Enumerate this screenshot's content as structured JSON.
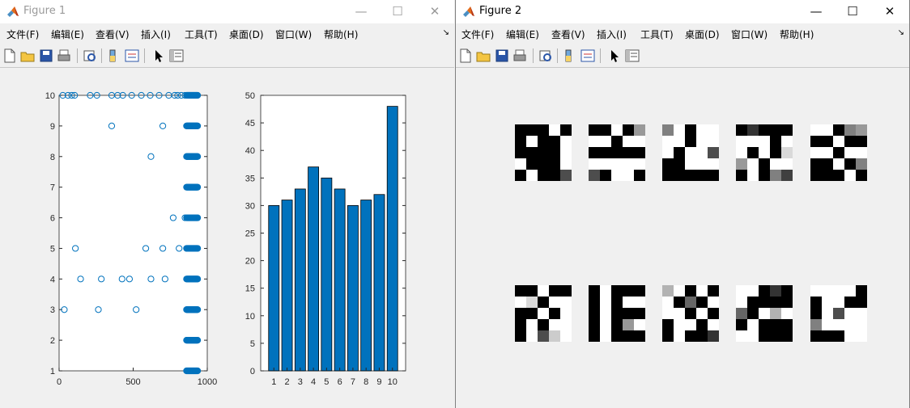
{
  "windows": [
    {
      "title": "Figure 1",
      "controls": {
        "minimize": "—",
        "maximize": "☐",
        "close": "✕"
      },
      "menu": [
        "文件(F)",
        "编辑(E)",
        "查看(V)",
        "插入(I)",
        "工具(T)",
        "桌面(D)",
        "窗口(W)",
        "帮助(H)"
      ],
      "menu_arrow": "↘"
    },
    {
      "title": "Figure 2",
      "controls": {
        "minimize": "—",
        "maximize": "☐",
        "close": "✕"
      },
      "menu": [
        "文件(F)",
        "编辑(E)",
        "查看(V)",
        "插入(I)",
        "工具(T)",
        "桌面(D)",
        "窗口(W)",
        "帮助(H)"
      ],
      "menu_arrow": "↘"
    }
  ],
  "toolbar_icons": [
    "new-file-icon",
    "open-folder-icon",
    "save-icon",
    "print-icon",
    "print-preview-icon",
    "colorbar-icon",
    "legend-icon",
    "pointer-icon",
    "property-inspector-icon"
  ],
  "colors": {
    "marker": "#0072bd",
    "bar_fill": "#0072bd",
    "axes_bg": "#ffffff",
    "figure_bg": "#f0f0f0"
  },
  "chart_data": [
    {
      "type": "scatter",
      "marker": "open-circle",
      "xlim": [
        0,
        1000
      ],
      "ylim": [
        1,
        10
      ],
      "xticks": [
        "0",
        "500",
        "1000"
      ],
      "yticks": [
        "1",
        "2",
        "3",
        "4",
        "5",
        "6",
        "7",
        "8",
        "9",
        "10"
      ],
      "points": [
        {
          "x": 25,
          "y": 10
        },
        {
          "x": 60,
          "y": 10
        },
        {
          "x": 85,
          "y": 10
        },
        {
          "x": 105,
          "y": 10
        },
        {
          "x": 210,
          "y": 10
        },
        {
          "x": 255,
          "y": 10
        },
        {
          "x": 355,
          "y": 10
        },
        {
          "x": 395,
          "y": 10
        },
        {
          "x": 430,
          "y": 10
        },
        {
          "x": 490,
          "y": 10
        },
        {
          "x": 555,
          "y": 10
        },
        {
          "x": 615,
          "y": 10
        },
        {
          "x": 675,
          "y": 10
        },
        {
          "x": 740,
          "y": 10
        },
        {
          "x": 780,
          "y": 10
        },
        {
          "x": 800,
          "y": 10
        },
        {
          "x": 825,
          "y": 10
        },
        {
          "x": 850,
          "y": 10
        },
        {
          "x": 355,
          "y": 9
        },
        {
          "x": 700,
          "y": 9
        },
        {
          "x": 620,
          "y": 8
        },
        {
          "x": 770,
          "y": 6
        },
        {
          "x": 850,
          "y": 6
        },
        {
          "x": 110,
          "y": 5
        },
        {
          "x": 585,
          "y": 5
        },
        {
          "x": 700,
          "y": 5
        },
        {
          "x": 810,
          "y": 5
        },
        {
          "x": 145,
          "y": 4
        },
        {
          "x": 285,
          "y": 4
        },
        {
          "x": 425,
          "y": 4
        },
        {
          "x": 475,
          "y": 4
        },
        {
          "x": 620,
          "y": 4
        },
        {
          "x": 715,
          "y": 4
        },
        {
          "x": 35,
          "y": 3
        },
        {
          "x": 265,
          "y": 3
        },
        {
          "x": 520,
          "y": 3
        }
      ],
      "dense_columns": [
        {
          "y": 10,
          "x_from": 860,
          "x_to": 935
        },
        {
          "y": 9,
          "x_from": 860,
          "x_to": 935
        },
        {
          "y": 8,
          "x_from": 860,
          "x_to": 935
        },
        {
          "y": 7,
          "x_from": 860,
          "x_to": 935
        },
        {
          "y": 6,
          "x_from": 860,
          "x_to": 935
        },
        {
          "y": 5,
          "x_from": 860,
          "x_to": 935
        },
        {
          "y": 4,
          "x_from": 860,
          "x_to": 935
        },
        {
          "y": 3,
          "x_from": 860,
          "x_to": 935
        },
        {
          "y": 2,
          "x_from": 860,
          "x_to": 935
        },
        {
          "y": 1,
          "x_from": 860,
          "x_to": 935
        }
      ]
    },
    {
      "type": "bar",
      "categories": [
        "1",
        "2",
        "3",
        "4",
        "5",
        "6",
        "7",
        "8",
        "9",
        "10"
      ],
      "values": [
        30,
        31,
        33,
        37,
        35,
        33,
        30,
        31,
        32,
        48
      ],
      "ylim": [
        0,
        50
      ],
      "yticks": [
        "0",
        "5",
        "10",
        "15",
        "20",
        "25",
        "30",
        "35",
        "40",
        "45",
        "50"
      ]
    }
  ],
  "figure2": {
    "type": "image-grid",
    "rows": 2,
    "cols": 5,
    "tiles": [
      [
        [
          0,
          0,
          0,
          1,
          0
        ],
        [
          0,
          1,
          0,
          0,
          1
        ],
        [
          0,
          0,
          0,
          0,
          1
        ],
        [
          1,
          0,
          0,
          0,
          1
        ],
        [
          0,
          1,
          0,
          0,
          0.3
        ]
      ],
      [
        [
          0,
          0,
          1,
          0,
          0.6
        ],
        [
          1,
          1,
          0,
          1,
          1
        ],
        [
          0,
          0,
          0,
          0,
          0
        ],
        [
          1,
          1,
          1,
          1,
          1
        ],
        [
          0.3,
          0,
          1,
          1,
          0
        ]
      ],
      [
        [
          0.5,
          1,
          0,
          1,
          1
        ],
        [
          1,
          1,
          0,
          1,
          1
        ],
        [
          1,
          0,
          1,
          1,
          0.3
        ],
        [
          0,
          0,
          1,
          1,
          1
        ],
        [
          0,
          0,
          0,
          0,
          0
        ]
      ],
      [
        [
          0,
          0.2,
          0,
          0,
          0
        ],
        [
          1,
          1,
          1,
          0,
          1
        ],
        [
          1,
          0,
          1,
          0,
          0.85
        ],
        [
          0.6,
          1,
          0,
          1,
          1
        ],
        [
          0,
          1,
          0,
          0.5,
          0.25
        ]
      ],
      [
        [
          1,
          1,
          0,
          0.5,
          0.6
        ],
        [
          0,
          0,
          1,
          0,
          0
        ],
        [
          1,
          1,
          0,
          1,
          1
        ],
        [
          0,
          0,
          1,
          0,
          0.5
        ],
        [
          0,
          0,
          0,
          1,
          0
        ]
      ],
      [
        [
          0,
          0,
          1,
          0,
          0
        ],
        [
          1,
          0.85,
          0,
          1,
          1
        ],
        [
          0,
          0,
          1,
          0,
          1
        ],
        [
          0,
          1,
          0,
          1,
          1
        ],
        [
          0,
          1,
          0.3,
          0.8,
          1
        ]
      ],
      [
        [
          0,
          1,
          0,
          0,
          0
        ],
        [
          0,
          1,
          0,
          1,
          1
        ],
        [
          0,
          1,
          0,
          0,
          0
        ],
        [
          0,
          1,
          0,
          0.6,
          1
        ],
        [
          0,
          1,
          0,
          0,
          0
        ]
      ],
      [
        [
          0.7,
          1,
          0,
          1,
          0
        ],
        [
          1,
          0,
          0.4,
          0,
          1
        ],
        [
          1,
          1,
          0,
          1,
          0
        ],
        [
          0,
          1,
          1,
          0,
          1
        ],
        [
          0,
          1,
          0,
          0,
          0.2
        ]
      ],
      [
        [
          1,
          1,
          0,
          0.2,
          0
        ],
        [
          1,
          0,
          0,
          0,
          0
        ],
        [
          0.4,
          0,
          1,
          0.7,
          1
        ],
        [
          0,
          1,
          0,
          0,
          0
        ],
        [
          1,
          1,
          0,
          0,
          0
        ]
      ],
      [
        [
          1,
          1,
          1,
          1,
          0
        ],
        [
          0,
          1,
          1,
          0,
          0
        ],
        [
          0,
          1,
          0.3,
          1,
          1
        ],
        [
          0.5,
          1,
          1,
          1,
          1
        ],
        [
          0,
          0,
          0,
          1,
          1
        ]
      ]
    ]
  }
}
